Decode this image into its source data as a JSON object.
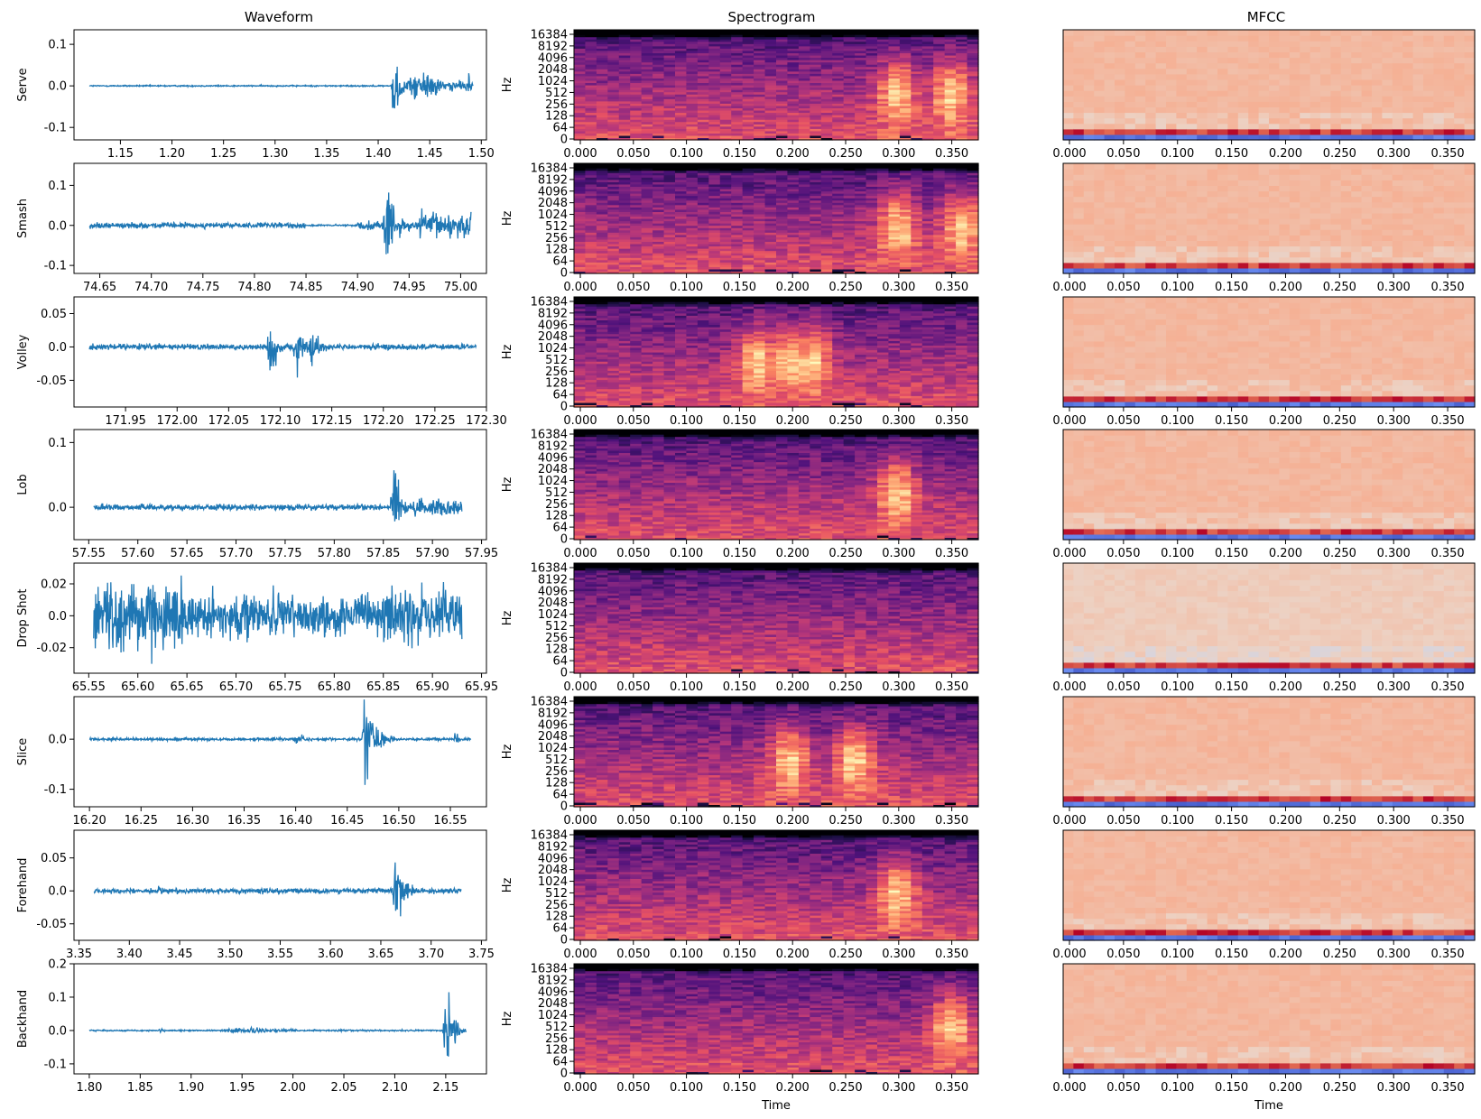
{
  "column_titles": [
    "Waveform",
    "Spectrogram",
    "MFCC"
  ],
  "time_label": "Time",
  "hz_label": "Hz",
  "colors": {
    "waveform_line": "#1f77b4",
    "axis": "#000000",
    "magma": [
      "#000004",
      "#1c1044",
      "#4f127b",
      "#812581",
      "#b5367a",
      "#e55064",
      "#fb8761",
      "#fec287",
      "#fcfdbf"
    ],
    "coolwarm": [
      "#3b4cc0",
      "#6788ee",
      "#9abbff",
      "#c9d7f0",
      "#edd1c2",
      "#f7a889",
      "#e26952",
      "#b40426"
    ]
  },
  "chart_data": [
    {
      "type": "line",
      "row": "Serve",
      "title": "Waveform",
      "ylabel": "Serve",
      "xlim": [
        1.105,
        1.505
      ],
      "ylim": [
        -0.13,
        0.135
      ],
      "xticks": [
        1.15,
        1.2,
        1.25,
        1.3,
        1.35,
        1.4,
        1.45,
        1.5
      ],
      "yticks": [
        -0.1,
        0.0,
        0.1
      ],
      "x_start": 1.12,
      "x_end": 1.492,
      "noise": 0.0015,
      "bursts": [
        {
          "t": 1.415,
          "amp": 0.12,
          "width": 0.012
        },
        {
          "t": 1.488,
          "amp": 0.06,
          "width": 0.006
        }
      ],
      "envelope": [
        {
          "t": 1.12,
          "level": 0.0015
        },
        {
          "t": 1.43,
          "level": 0.03
        },
        {
          "t": 1.46,
          "level": 0.01
        }
      ]
    },
    {
      "type": "heatmap",
      "row": "Serve",
      "title": "Spectrogram",
      "xlabel": "",
      "ylabel": "Hz",
      "xlim": [
        0.0,
        0.375
      ],
      "xticks": [
        0.0,
        0.05,
        0.1,
        0.15,
        0.2,
        0.25,
        0.3,
        0.35
      ],
      "yticks": [
        0,
        64,
        128,
        256,
        512,
        1024,
        2048,
        4096,
        8192,
        16384
      ],
      "hot_times": [
        0.3,
        0.35
      ]
    },
    {
      "type": "heatmap",
      "row": "Serve",
      "title": "MFCC",
      "xlabel": "",
      "xlim": [
        0.0,
        0.375
      ],
      "xticks": [
        0.0,
        0.05,
        0.1,
        0.15,
        0.2,
        0.25,
        0.3,
        0.35
      ]
    },
    {
      "type": "line",
      "row": "Smash",
      "ylabel": "Smash",
      "xlim": [
        74.625,
        75.025
      ],
      "ylim": [
        -0.12,
        0.155
      ],
      "xticks": [
        74.65,
        74.7,
        74.75,
        74.8,
        74.85,
        74.9,
        74.95,
        75.0
      ],
      "yticks": [
        -0.1,
        0.0,
        0.1
      ],
      "x_start": 74.64,
      "x_end": 75.01,
      "noise": 0.006,
      "bursts": [
        {
          "t": 74.928,
          "amp": 0.15,
          "width": 0.012
        },
        {
          "t": 75.005,
          "amp": 0.06,
          "width": 0.006
        }
      ],
      "envelope": [
        {
          "t": 74.64,
          "level": 0.006
        },
        {
          "t": 74.85,
          "level": 0.002
        },
        {
          "t": 74.9,
          "level": 0.01
        },
        {
          "t": 74.96,
          "level": 0.03
        }
      ]
    },
    {
      "type": "heatmap",
      "row": "Smash",
      "ylabel": "Hz",
      "xlim": [
        0.0,
        0.375
      ],
      "xticks": [
        0.0,
        0.05,
        0.1,
        0.15,
        0.2,
        0.25,
        0.3,
        0.35
      ],
      "yticks": [
        0,
        64,
        128,
        256,
        512,
        1024,
        2048,
        4096,
        8192,
        16384
      ],
      "hot_times": [
        0.3,
        0.36
      ]
    },
    {
      "type": "heatmap",
      "row": "Smash",
      "xlim": [
        0.0,
        0.375
      ],
      "xticks": [
        0.0,
        0.05,
        0.1,
        0.15,
        0.2,
        0.25,
        0.3,
        0.35
      ]
    },
    {
      "type": "line",
      "row": "Volley",
      "ylabel": "Volley",
      "xlim": [
        171.9,
        172.3
      ],
      "ylim": [
        -0.09,
        0.075
      ],
      "xticks": [
        171.95,
        172.0,
        172.05,
        172.1,
        172.15,
        172.2,
        172.25,
        172.3
      ],
      "yticks": [
        -0.05,
        0.0,
        0.05
      ],
      "x_start": 171.915,
      "x_end": 172.29,
      "noise": 0.004,
      "bursts": [
        {
          "t": 172.09,
          "amp": 0.085,
          "width": 0.01
        },
        {
          "t": 172.115,
          "amp": 0.075,
          "width": 0.01
        },
        {
          "t": 172.13,
          "amp": 0.05,
          "width": 0.01
        }
      ],
      "envelope": [
        {
          "t": 171.915,
          "level": 0.004
        }
      ]
    },
    {
      "type": "heatmap",
      "row": "Volley",
      "ylabel": "Hz",
      "xlim": [
        0.0,
        0.375
      ],
      "xticks": [
        0.0,
        0.05,
        0.1,
        0.15,
        0.2,
        0.25,
        0.3,
        0.35
      ],
      "yticks": [
        0,
        64,
        128,
        256,
        512,
        1024,
        2048,
        4096,
        8192,
        16384
      ],
      "hot_times": [
        0.17,
        0.2,
        0.22
      ]
    },
    {
      "type": "heatmap",
      "row": "Volley",
      "xlim": [
        0.0,
        0.375
      ],
      "xticks": [
        0.0,
        0.05,
        0.1,
        0.15,
        0.2,
        0.25,
        0.3,
        0.35
      ]
    },
    {
      "type": "line",
      "row": "Lob",
      "ylabel": "Lob",
      "xlim": [
        57.535,
        57.955
      ],
      "ylim": [
        -0.05,
        0.12
      ],
      "xticks": [
        57.55,
        57.6,
        57.65,
        57.7,
        57.75,
        57.8,
        57.85,
        57.9,
        57.95
      ],
      "yticks": [
        0.0,
        0.1
      ],
      "x_start": 57.555,
      "x_end": 57.93,
      "noise": 0.004,
      "bursts": [
        {
          "t": 57.86,
          "amp": 0.1,
          "width": 0.012
        }
      ],
      "envelope": [
        {
          "t": 57.555,
          "level": 0.004
        },
        {
          "t": 57.88,
          "level": 0.012
        }
      ]
    },
    {
      "type": "heatmap",
      "row": "Lob",
      "ylabel": "Hz",
      "xlim": [
        0.0,
        0.375
      ],
      "xticks": [
        0.0,
        0.05,
        0.1,
        0.15,
        0.2,
        0.25,
        0.3,
        0.35
      ],
      "yticks": [
        0,
        64,
        128,
        256,
        512,
        1024,
        2048,
        4096,
        8192,
        16384
      ],
      "hot_times": [
        0.3
      ]
    },
    {
      "type": "heatmap",
      "row": "Lob",
      "xlim": [
        0.0,
        0.375
      ],
      "xticks": [
        0.0,
        0.05,
        0.1,
        0.15,
        0.2,
        0.25,
        0.3,
        0.35
      ]
    },
    {
      "type": "line",
      "row": "Drop Shot",
      "ylabel": "Drop Shot",
      "xlim": [
        65.535,
        65.955
      ],
      "ylim": [
        -0.036,
        0.033
      ],
      "xticks": [
        65.55,
        65.6,
        65.65,
        65.7,
        65.75,
        65.8,
        65.85,
        65.9,
        65.95
      ],
      "yticks": [
        -0.02,
        0.0,
        0.02
      ],
      "x_start": 65.555,
      "x_end": 65.93,
      "noise": 0.018,
      "bursts": [],
      "envelope": [
        {
          "t": 65.555,
          "level": 0.02
        },
        {
          "t": 65.65,
          "level": 0.012
        },
        {
          "t": 65.85,
          "level": 0.016
        }
      ]
    },
    {
      "type": "heatmap",
      "row": "Drop Shot",
      "ylabel": "Hz",
      "xlim": [
        0.0,
        0.375
      ],
      "xticks": [
        0.0,
        0.05,
        0.1,
        0.15,
        0.2,
        0.25,
        0.3,
        0.35
      ],
      "yticks": [
        0,
        64,
        128,
        256,
        512,
        1024,
        2048,
        4096,
        8192,
        16384
      ],
      "hot_times": []
    },
    {
      "type": "heatmap",
      "row": "Drop Shot",
      "xlim": [
        0.0,
        0.375
      ],
      "xticks": [
        0.0,
        0.05,
        0.1,
        0.15,
        0.2,
        0.25,
        0.3,
        0.35
      ]
    },
    {
      "type": "line",
      "row": "Slice",
      "ylabel": "Slice",
      "xlim": [
        16.185,
        16.585
      ],
      "ylim": [
        -0.135,
        0.085
      ],
      "xticks": [
        16.2,
        16.25,
        16.3,
        16.35,
        16.4,
        16.45,
        16.5,
        16.55
      ],
      "yticks": [
        -0.1,
        0.0
      ],
      "x_start": 16.2,
      "x_end": 16.57,
      "noise": 0.0025,
      "bursts": [
        {
          "t": 16.4,
          "amp": 0.018,
          "width": 0.012
        },
        {
          "t": 16.468,
          "amp": 0.12,
          "width": 0.014
        },
        {
          "t": 16.555,
          "amp": 0.02,
          "width": 0.006
        }
      ],
      "envelope": [
        {
          "t": 16.2,
          "level": 0.0025
        }
      ]
    },
    {
      "type": "heatmap",
      "row": "Slice",
      "ylabel": "Hz",
      "xlim": [
        0.0,
        0.375
      ],
      "xticks": [
        0.0,
        0.05,
        0.1,
        0.15,
        0.2,
        0.25,
        0.3,
        0.35
      ],
      "yticks": [
        0,
        64,
        128,
        256,
        512,
        1024,
        2048,
        4096,
        8192,
        16384
      ],
      "hot_times": [
        0.26,
        0.2
      ]
    },
    {
      "type": "heatmap",
      "row": "Slice",
      "xlim": [
        0.0,
        0.375
      ],
      "xticks": [
        0.0,
        0.05,
        0.1,
        0.15,
        0.2,
        0.25,
        0.3,
        0.35
      ]
    },
    {
      "type": "line",
      "row": "Forehand",
      "ylabel": "Forehand",
      "xlim": [
        3.345,
        3.755
      ],
      "ylim": [
        -0.075,
        0.092
      ],
      "xticks": [
        3.35,
        3.4,
        3.45,
        3.5,
        3.55,
        3.6,
        3.65,
        3.7,
        3.75
      ],
      "yticks": [
        -0.05,
        0.0,
        0.05
      ],
      "x_start": 3.365,
      "x_end": 3.73,
      "noise": 0.0035,
      "bursts": [
        {
          "t": 3.43,
          "amp": 0.01,
          "width": 0.01
        },
        {
          "t": 3.665,
          "amp": 0.085,
          "width": 0.012
        }
      ],
      "envelope": [
        {
          "t": 3.365,
          "level": 0.0035
        }
      ]
    },
    {
      "type": "heatmap",
      "row": "Forehand",
      "ylabel": "Hz",
      "xlim": [
        0.0,
        0.375
      ],
      "xticks": [
        0.0,
        0.05,
        0.1,
        0.15,
        0.2,
        0.25,
        0.3,
        0.35
      ],
      "yticks": [
        0,
        64,
        128,
        256,
        512,
        1024,
        2048,
        4096,
        8192,
        16384
      ],
      "hot_times": [
        0.3
      ]
    },
    {
      "type": "heatmap",
      "row": "Forehand",
      "xlim": [
        0.0,
        0.375
      ],
      "xticks": [
        0.0,
        0.05,
        0.1,
        0.15,
        0.2,
        0.25,
        0.3,
        0.35
      ]
    },
    {
      "type": "line",
      "row": "Backhand",
      "ylabel": "Backhand",
      "xlim": [
        1.785,
        2.19
      ],
      "ylim": [
        -0.13,
        0.2
      ],
      "xticks": [
        1.8,
        1.85,
        1.9,
        1.95,
        2.0,
        2.05,
        2.1,
        2.15
      ],
      "yticks": [
        -0.1,
        0.0,
        0.1,
        0.2
      ],
      "x_start": 1.8,
      "x_end": 2.17,
      "noise": 0.002,
      "bursts": [
        {
          "t": 1.87,
          "amp": 0.008,
          "width": 0.006
        },
        {
          "t": 1.96,
          "amp": 0.014,
          "width": 0.02
        },
        {
          "t": 2.15,
          "amp": 0.18,
          "width": 0.012
        }
      ],
      "envelope": [
        {
          "t": 1.8,
          "level": 0.002
        },
        {
          "t": 1.93,
          "level": 0.005
        },
        {
          "t": 2.0,
          "level": 0.002
        }
      ]
    },
    {
      "type": "heatmap",
      "row": "Backhand",
      "xlabel": "Time",
      "ylabel": "Hz",
      "xlim": [
        0.0,
        0.375
      ],
      "xticks": [
        0.0,
        0.05,
        0.1,
        0.15,
        0.2,
        0.25,
        0.3,
        0.35
      ],
      "yticks": [
        0,
        64,
        128,
        256,
        512,
        1024,
        2048,
        4096,
        8192,
        16384
      ],
      "hot_times": [
        0.35
      ]
    },
    {
      "type": "heatmap",
      "row": "Backhand",
      "xlabel": "Time",
      "xlim": [
        0.0,
        0.375
      ],
      "xticks": [
        0.0,
        0.05,
        0.1,
        0.15,
        0.2,
        0.25,
        0.3,
        0.35
      ]
    }
  ]
}
